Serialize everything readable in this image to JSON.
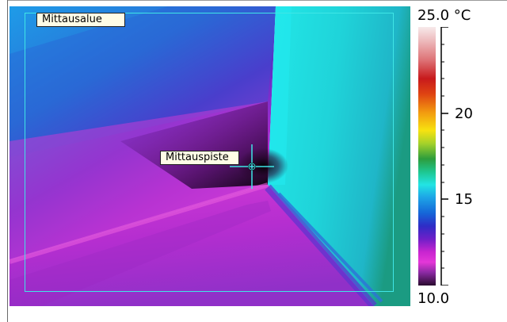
{
  "measurement": {
    "area_label": "Mittausalue",
    "spot_label": "Mittauspiste"
  },
  "scale": {
    "max_label": "25.0 °C",
    "min_label": "10.0",
    "tick_labels": [
      "20",
      "15"
    ],
    "range": [
      10.0,
      25.0
    ]
  },
  "colors": {
    "area_box": "#3fe6e6",
    "label_bg": "#fffde6"
  }
}
